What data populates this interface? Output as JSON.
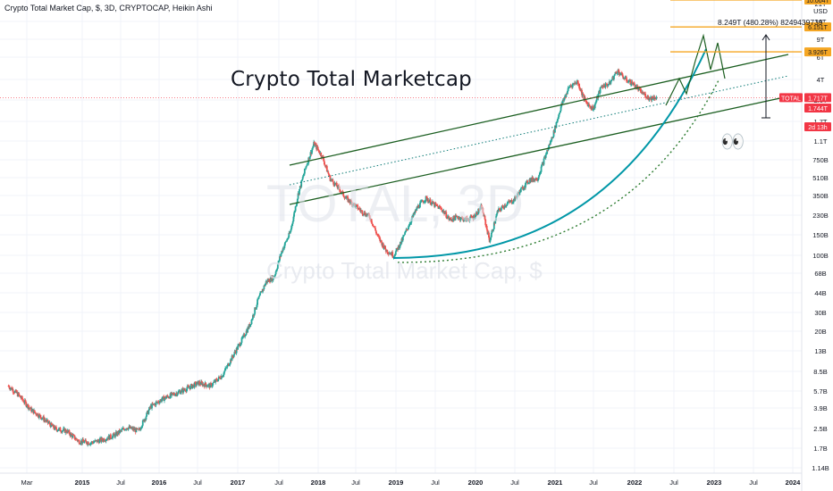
{
  "header": {
    "symbol_line": "Crypto Total Market Cap, $, 3D, CRYPTOCAP, Heikin Ashi"
  },
  "annotation": {
    "title": "Crypto Total Marketcap",
    "measure": "8.249T (480.28%) 8249439739",
    "eyes": "👀"
  },
  "watermark": {
    "ticker": "TOTAL, 3D",
    "name": "Crypto Total Market Cap, $"
  },
  "colors": {
    "up": "#26a69a",
    "down": "#ef5350",
    "channel": "#1b5e20",
    "curve": "#0097a7",
    "level": "#f5a623",
    "price_line": "#f23645"
  },
  "chart_data": {
    "type": "candlestick",
    "scale": "log",
    "x_axis_labels": [
      "Mar",
      "2015",
      "Jul",
      "2016",
      "Jul",
      "2017",
      "Jul",
      "2018",
      "Jul",
      "2019",
      "Jul",
      "2020",
      "Jul",
      "2021",
      "Jul",
      "2022",
      "Jul",
      "2023",
      "Jul",
      "2024"
    ],
    "y_axis_labels": [
      "21T",
      "USD",
      "14T",
      "9T",
      "6T",
      "4T",
      "2.6T",
      "1.7T",
      "1.1T",
      "750B",
      "510B",
      "350B",
      "230B",
      "150B",
      "100B",
      "68B",
      "44B",
      "30B",
      "20B",
      "13B",
      "8.5B",
      "5.7B",
      "3.9B",
      "2.5B",
      "1.7B",
      "1.14B"
    ],
    "price_labels": [
      {
        "label": "10.004T",
        "value": 10004
      },
      {
        "label": "6.151T",
        "value": 6151
      },
      {
        "label": "3.926T",
        "value": 3926
      },
      {
        "label": "1.744T",
        "value": 1744
      },
      {
        "label": "TOTAL",
        "value": 1717
      },
      {
        "label": "1.717T",
        "value": 1717
      },
      {
        "label": "2d 13h",
        "value": null
      }
    ],
    "horizontal_levels": [
      10004,
      6151,
      3926
    ],
    "series": [
      {
        "name": "TOTAL",
        "unit": "B USD",
        "x": [
          2014.17,
          2014.3,
          2014.45,
          2014.6,
          2014.75,
          2014.9,
          2015.05,
          2015.2,
          2015.35,
          2015.5,
          2015.65,
          2015.8,
          2015.95,
          2016.1,
          2016.25,
          2016.4,
          2016.55,
          2016.7,
          2016.85,
          2017.0,
          2017.1,
          2017.2,
          2017.3,
          2017.4,
          2017.5,
          2017.6,
          2017.7,
          2017.8,
          2017.9,
          2018.0,
          2018.1,
          2018.2,
          2018.3,
          2018.4,
          2018.5,
          2018.6,
          2018.7,
          2018.8,
          2018.9,
          2019.0,
          2019.1,
          2019.2,
          2019.3,
          2019.4,
          2019.5,
          2019.6,
          2019.7,
          2019.8,
          2019.9,
          2020.0,
          2020.1,
          2020.2,
          2020.3,
          2020.4,
          2020.5,
          2020.6,
          2020.7,
          2020.8,
          2020.9,
          2021.0,
          2021.1,
          2021.2,
          2021.3,
          2021.4,
          2021.5,
          2021.6,
          2021.7,
          2021.8,
          2021.9,
          2022.0,
          2022.1,
          2022.2,
          2022.3
        ],
        "values": [
          9.5,
          8,
          6.2,
          5.3,
          4.4,
          4.2,
          3.5,
          3.4,
          3.6,
          3.9,
          4.5,
          4.2,
          6.5,
          7.5,
          8.2,
          9,
          10,
          9.5,
          11.5,
          17,
          22,
          29,
          45,
          62,
          68,
          110,
          150,
          300,
          500,
          750,
          600,
          400,
          340,
          280,
          250,
          220,
          200,
          140,
          110,
          100,
          130,
          180,
          240,
          280,
          250,
          230,
          190,
          200,
          190,
          200,
          240,
          130,
          220,
          250,
          270,
          330,
          390,
          400,
          600,
          900,
          1500,
          2100,
          2300,
          1600,
          1400,
          2100,
          2200,
          2800,
          2400,
          2200,
          1900,
          1700,
          1744
        ]
      }
    ]
  }
}
